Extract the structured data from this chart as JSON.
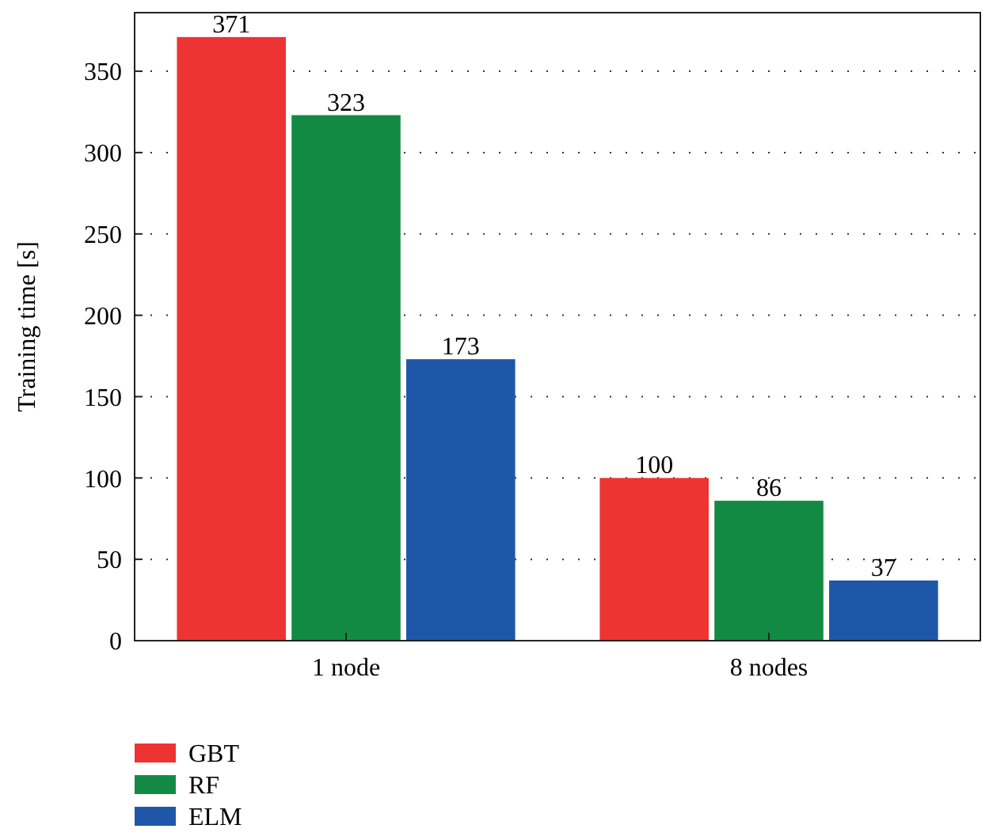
{
  "chart_data": {
    "type": "bar",
    "ylabel": "Training time [s]",
    "categories": [
      "1 node",
      "8 nodes"
    ],
    "series": [
      {
        "name": "GBT",
        "color": "#ee3333",
        "values": [
          371,
          100
        ]
      },
      {
        "name": "RF",
        "color": "#138a44",
        "values": [
          323,
          86
        ]
      },
      {
        "name": "ELM",
        "color": "#1f57a8",
        "values": [
          173,
          37
        ]
      }
    ],
    "ylim": [
      0,
      386
    ],
    "yticks": [
      0,
      50,
      100,
      150,
      200,
      250,
      300,
      350
    ],
    "grid": "y",
    "legend": "bottom left",
    "data_labels": true
  }
}
